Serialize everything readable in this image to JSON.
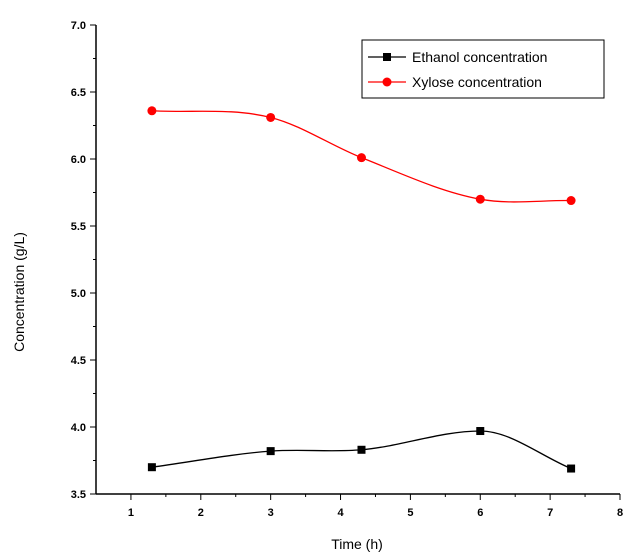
{
  "chart_data": {
    "type": "line",
    "xlabel": "Time (h)",
    "ylabel": "Concentration (g/L)",
    "xlim": [
      0.5,
      8
    ],
    "ylim": [
      3.5,
      7.0
    ],
    "x_ticks": [
      "1",
      "2",
      "3",
      "4",
      "5",
      "6",
      "7",
      "8"
    ],
    "y_ticks": [
      "3.5",
      "4.0",
      "4.5",
      "5.0",
      "5.5",
      "6.0",
      "6.5",
      "7.0"
    ],
    "grid": false,
    "legend_position": "top-right",
    "series": [
      {
        "name": "Ethanol concentration",
        "color": "#000000",
        "marker": "square",
        "x": [
          1.3,
          3.0,
          4.3,
          6.0,
          7.3
        ],
        "y": [
          3.7,
          3.82,
          3.83,
          3.97,
          3.69
        ]
      },
      {
        "name": "Xylose concentration",
        "color": "#ff0000",
        "marker": "circle",
        "x": [
          1.3,
          3.0,
          4.3,
          6.0,
          7.3
        ],
        "y": [
          6.36,
          6.31,
          6.01,
          5.7,
          5.69
        ]
      }
    ]
  }
}
